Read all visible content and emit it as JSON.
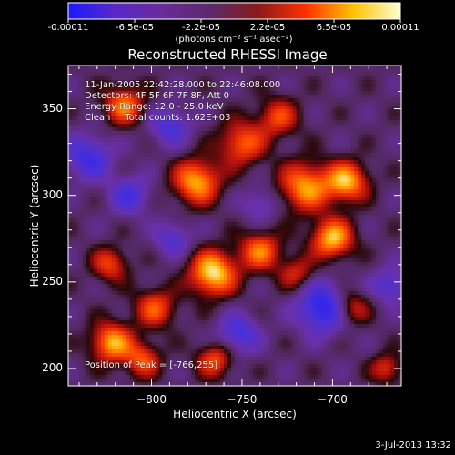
{
  "colorbar": {
    "ticks": [
      "-0.00011",
      "-6.5e-05",
      "-2.2e-05",
      "2.2e-05",
      "6.5e-05",
      "0.00011"
    ],
    "unit_label": "(photons cm⁻² s⁻¹ asec⁻²)",
    "colors": [
      "#1a1aff",
      "#5a28c8",
      "#6a2a9a",
      "#5a2a6a",
      "#8a1a1a",
      "#ff3000",
      "#ffc000",
      "#ffffd0"
    ]
  },
  "title": "Reconstructed RHESSI Image",
  "info": {
    "time_range": "11-Jan-2005 22:42:28.000 to 22:46:08.000",
    "detectors": "Detectors: 4F 5F 6F 7F 8F, Att 0",
    "energy": "Energy Range: 12.0 - 25.0 keV",
    "clean": "Clean     Total counts: 1.62E+03",
    "peak": "Position of Peak = [-766,255]"
  },
  "footer_date": "3-Jul-2013 13:32",
  "chart_data": {
    "type": "heatmap",
    "title": "Reconstructed RHESSI Image",
    "xlabel": "Heliocentric X (arcsec)",
    "ylabel": "Heliocentric Y (arcsec)",
    "xlim": [
      -846,
      -662
    ],
    "ylim": [
      190,
      375
    ],
    "x_ticks": [
      -800,
      -750,
      -700
    ],
    "x_tick_labels": [
      "−800",
      "−750",
      "−700"
    ],
    "y_ticks": [
      200,
      250,
      300,
      350
    ],
    "y_tick_labels": [
      "200",
      "250",
      "300",
      "350"
    ],
    "value_range": [
      -0.00011,
      0.00011
    ],
    "peak_position": [
      -766,
      255
    ],
    "sources": [
      {
        "x": -766,
        "y": 255,
        "amp": 1.0,
        "sigma": 9
      },
      {
        "x": -740,
        "y": 268,
        "amp": 0.7,
        "sigma": 8
      },
      {
        "x": -775,
        "y": 308,
        "amp": 0.85,
        "sigma": 9
      },
      {
        "x": -750,
        "y": 330,
        "amp": 0.65,
        "sigma": 9
      },
      {
        "x": -730,
        "y": 345,
        "amp": 0.55,
        "sigma": 8
      },
      {
        "x": -715,
        "y": 305,
        "amp": 0.8,
        "sigma": 10
      },
      {
        "x": -692,
        "y": 308,
        "amp": 0.85,
        "sigma": 8
      },
      {
        "x": -700,
        "y": 275,
        "amp": 0.9,
        "sigma": 8
      },
      {
        "x": -720,
        "y": 255,
        "amp": 0.45,
        "sigma": 7
      },
      {
        "x": -815,
        "y": 352,
        "amp": 0.7,
        "sigma": 8
      },
      {
        "x": -823,
        "y": 260,
        "amp": 0.55,
        "sigma": 7
      },
      {
        "x": -798,
        "y": 235,
        "amp": 0.6,
        "sigma": 8
      },
      {
        "x": -822,
        "y": 215,
        "amp": 0.85,
        "sigma": 8
      },
      {
        "x": -805,
        "y": 205,
        "amp": 0.6,
        "sigma": 7
      },
      {
        "x": -765,
        "y": 205,
        "amp": 0.6,
        "sigma": 7
      },
      {
        "x": -690,
        "y": 235,
        "amp": 0.55,
        "sigma": 7
      },
      {
        "x": -670,
        "y": 200,
        "amp": 0.5,
        "sigma": 6
      }
    ],
    "negative_regions": [
      {
        "x": -835,
        "y": 322,
        "amp": -0.6,
        "sigma": 9
      },
      {
        "x": -790,
        "y": 340,
        "amp": -0.5,
        "sigma": 8
      },
      {
        "x": -812,
        "y": 300,
        "amp": -0.5,
        "sigma": 8
      },
      {
        "x": -705,
        "y": 235,
        "amp": -0.8,
        "sigma": 10
      },
      {
        "x": -752,
        "y": 220,
        "amp": -0.55,
        "sigma": 8
      },
      {
        "x": -788,
        "y": 275,
        "amp": -0.45,
        "sigma": 7
      },
      {
        "x": -668,
        "y": 248,
        "amp": -0.5,
        "sigma": 7
      },
      {
        "x": -740,
        "y": 295,
        "amp": -0.35,
        "sigma": 7
      }
    ]
  }
}
